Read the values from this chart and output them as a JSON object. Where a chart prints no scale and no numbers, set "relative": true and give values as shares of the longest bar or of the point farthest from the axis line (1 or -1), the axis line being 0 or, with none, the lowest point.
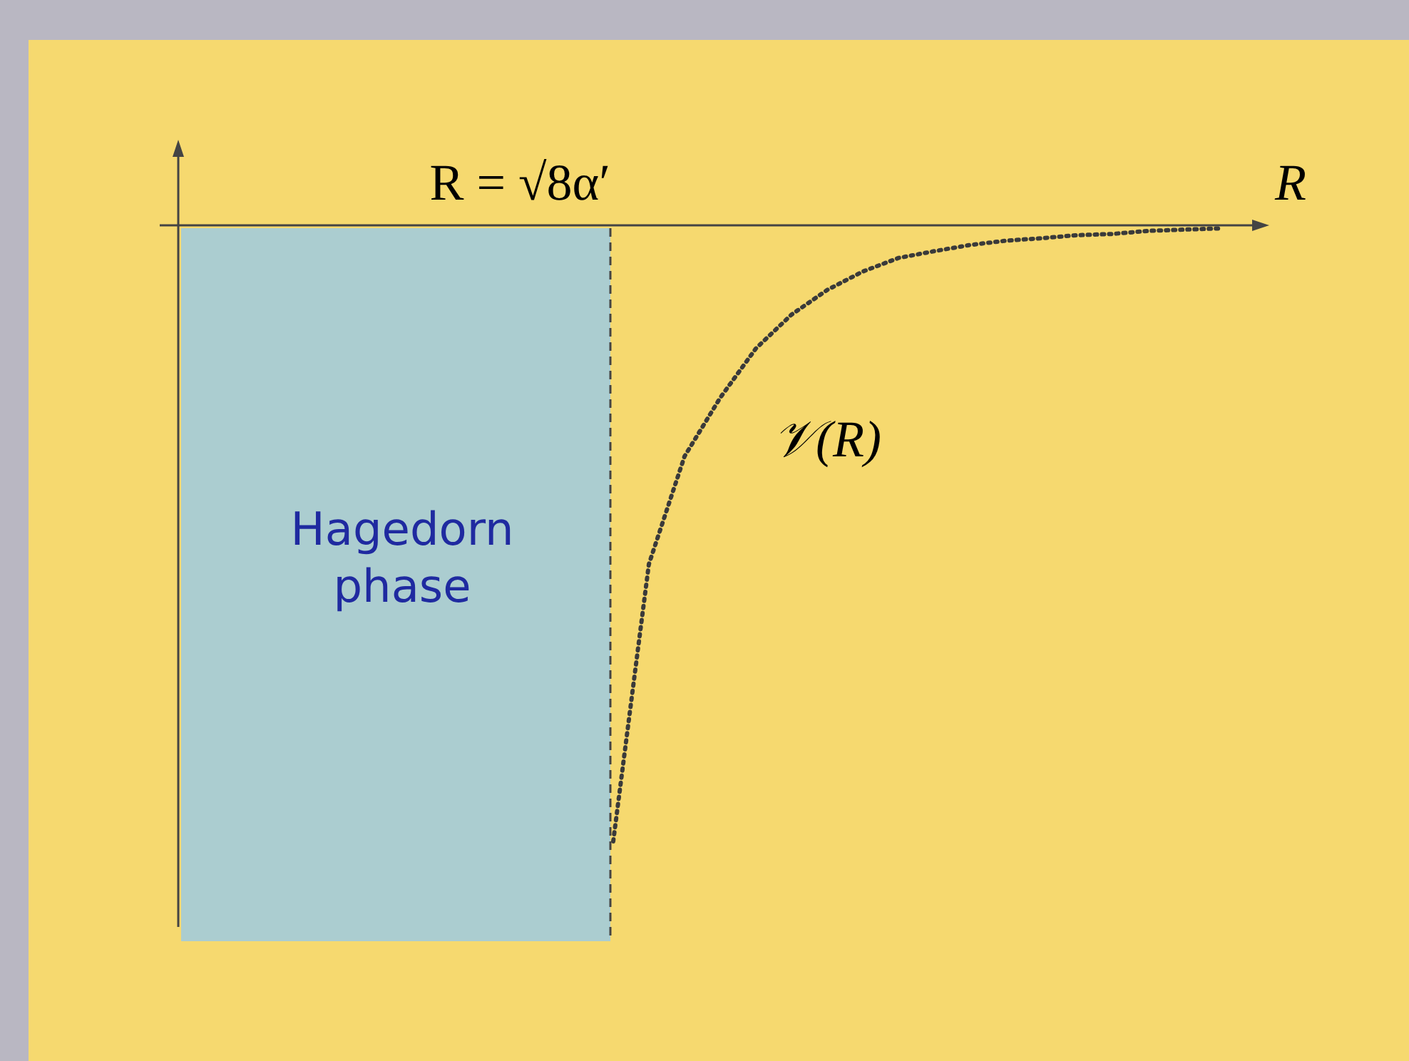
{
  "chart_data": {
    "type": "line",
    "relative": true,
    "xlabel": "R",
    "categories": [
      null,
      null,
      null,
      null,
      null,
      null,
      null,
      null,
      null,
      null,
      null,
      null,
      null,
      null,
      null,
      null,
      null,
      null,
      null,
      null,
      null,
      null,
      null,
      null,
      null,
      null,
      null,
      null,
      null,
      null,
      null
    ],
    "series": [
      {
        "color": "#3a3a3a",
        "values": [
          null,
          null,
          null,
          null,
          null,
          null,
          null,
          null,
          null,
          null,
          null,
          null,
          -1,
          -0.55,
          -0.375,
          -0.28,
          -0.2,
          -0.145,
          -0.105,
          -0.075,
          -0.053,
          -0.042,
          -0.032,
          -0.025,
          -0.021,
          -0.016,
          -0.014,
          -0.009,
          -0.007,
          -0.005,
          null
        ]
      }
    ],
    "line_style": "dotted",
    "marker": "none",
    "grid": false,
    "annotations": [
      "R = √8α′",
      "Hagedorn phase",
      "𝒱(R)"
    ]
  }
}
